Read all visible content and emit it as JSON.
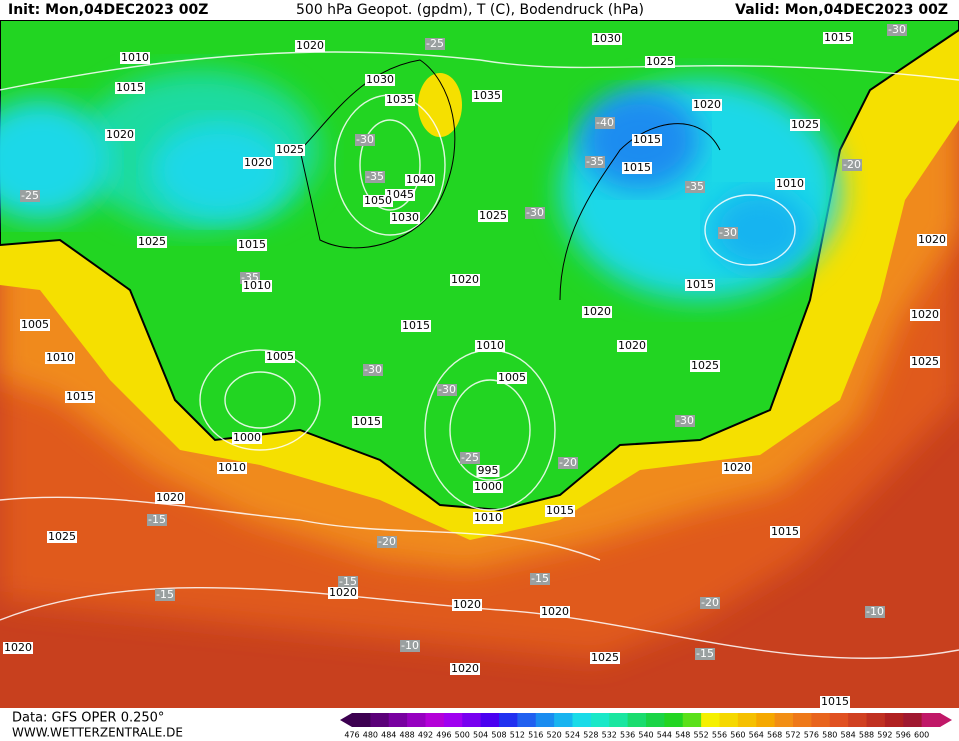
{
  "header": {
    "init": "Init: Mon,04DEC2023 00Z",
    "title": "500 hPa Geopot. (gpdm), T (C), Bodendruck (hPa)",
    "valid": "Valid: Mon,04DEC2023 00Z"
  },
  "footer": {
    "source": "Data: GFS OPER 0.250°",
    "website": "WWW.WETTERZENTRALE.DE"
  },
  "colorbar": {
    "levels": [
      476,
      480,
      484,
      488,
      492,
      496,
      500,
      504,
      508,
      512,
      516,
      520,
      524,
      528,
      532,
      536,
      540,
      544,
      548,
      552,
      556,
      560,
      564,
      568,
      572,
      576,
      580,
      584,
      588,
      592,
      596,
      600
    ],
    "colors": [
      "#3c0050",
      "#5a0078",
      "#7800a0",
      "#9600c0",
      "#b400d8",
      "#a000f0",
      "#7800f0",
      "#4a00f0",
      "#2030f0",
      "#2060f0",
      "#1a8cf0",
      "#18b4f0",
      "#1adbe8",
      "#1ae8c8",
      "#1ae6a0",
      "#1adc6e",
      "#1ad446",
      "#22d522",
      "#5ae01a",
      "#f5f000",
      "#f5d800",
      "#f5c000",
      "#f5a800",
      "#f28e14",
      "#ee7818",
      "#e8641c",
      "#e05020",
      "#d04020",
      "#c03020",
      "#b02020",
      "#a01830",
      "#c01868"
    ]
  },
  "pressure_labels": [
    "1010",
    "1015",
    "1020",
    "1020",
    "1025",
    "1020",
    "1025",
    "1015",
    "1010",
    "1005",
    "1010",
    "1015",
    "1005",
    "1000",
    "1010",
    "1020",
    "1025",
    "1020",
    "1015",
    "1015",
    "1020",
    "1025",
    "1035",
    "1030",
    "1025",
    "1020",
    "1025",
    "1015",
    "1015",
    "1010",
    "1015",
    "1020",
    "1020",
    "1025",
    "1010",
    "1005",
    "995",
    "1000",
    "1010",
    "1015",
    "1020",
    "1015",
    "1020",
    "1020",
    "1025",
    "1020",
    "1015",
    "1020",
    "1020",
    "1020",
    "1025",
    "1015",
    "1030",
    "1035",
    "1040",
    "1045",
    "1050",
    "1030"
  ],
  "temperature_labels": [
    "-25",
    "-25",
    "-30",
    "-35",
    "-35",
    "-40",
    "-35",
    "-30",
    "-30",
    "-20",
    "-30",
    "-30",
    "-25",
    "-30",
    "-20",
    "-15",
    "-20",
    "-15",
    "-15",
    "-15",
    "-20",
    "-15",
    "-10",
    "-10",
    "-35",
    "-30"
  ]
}
